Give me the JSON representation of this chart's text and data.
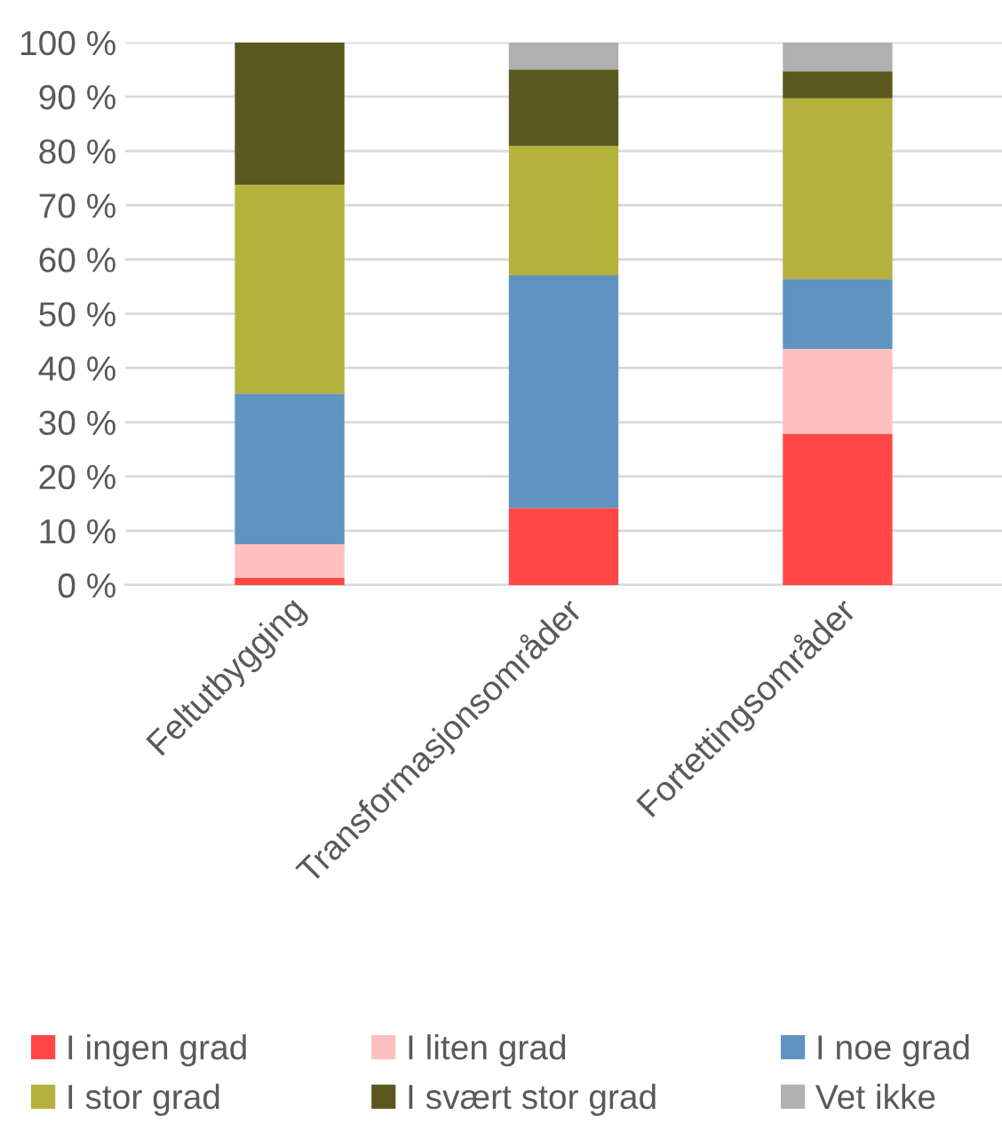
{
  "chart_data": {
    "type": "bar",
    "stacked": true,
    "categories": [
      "Feltutbygging",
      "Transformasjonsområder",
      "Fortettingsområder"
    ],
    "series": [
      {
        "name": "I ingen grad",
        "color": "#ff4747",
        "values": [
          1.3,
          14.2,
          27.9
        ]
      },
      {
        "name": "I liten grad",
        "color": "#ffbfbf",
        "values": [
          6.2,
          0,
          15.6
        ]
      },
      {
        "name": "I noe grad",
        "color": "#6094c0",
        "values": [
          27.8,
          42.9,
          12.9
        ]
      },
      {
        "name": "I stor grad",
        "color": "#b4b23c",
        "values": [
          38.5,
          23.8,
          33.3
        ]
      },
      {
        "name": "I svært stor grad",
        "color": "#5a581e",
        "values": [
          26.2,
          14.1,
          5.0
        ]
      },
      {
        "name": "Vet ikke",
        "color": "#b0b0b0",
        "values": [
          0,
          5.0,
          5.3
        ]
      }
    ],
    "ylim": [
      0,
      100
    ],
    "yticks": [
      {
        "value": 0,
        "label": "0 %"
      },
      {
        "value": 10,
        "label": "10 %"
      },
      {
        "value": 20,
        "label": "20 %"
      },
      {
        "value": 30,
        "label": "30 %"
      },
      {
        "value": 40,
        "label": "40 %"
      },
      {
        "value": 50,
        "label": "50 %"
      },
      {
        "value": 60,
        "label": "60 %"
      },
      {
        "value": 70,
        "label": "70 %"
      },
      {
        "value": 80,
        "label": "80 %"
      },
      {
        "value": 90,
        "label": "90 %"
      },
      {
        "value": 100,
        "label": "100 %"
      }
    ],
    "grid": "y",
    "legend": "bottom"
  }
}
